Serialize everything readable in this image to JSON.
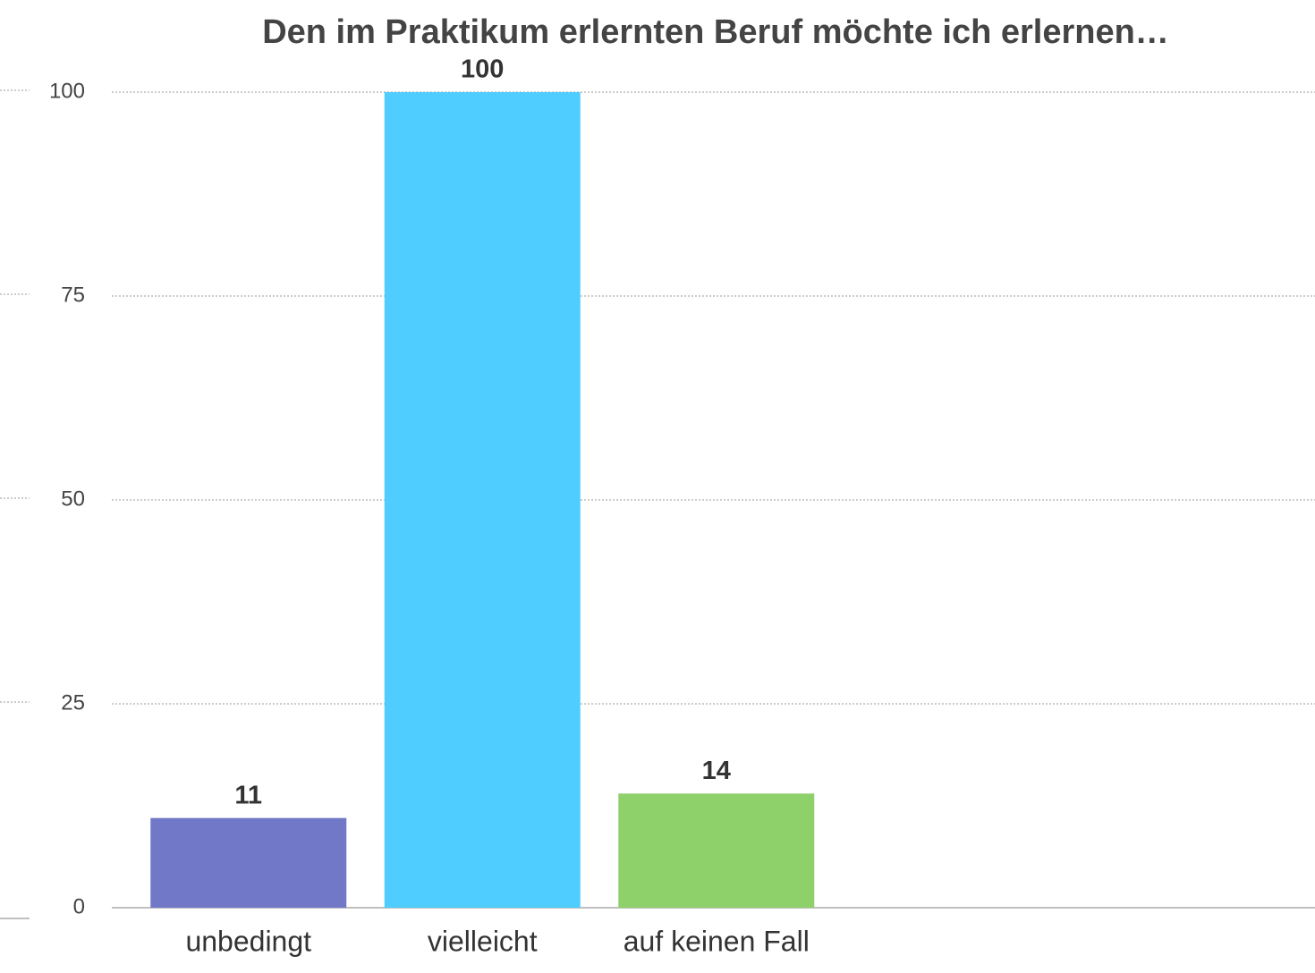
{
  "chart_data": {
    "type": "bar",
    "title": "Den im Praktikum erlernten Beruf möchte ich erlernen…",
    "categories": [
      "unbedingt",
      "vielleicht",
      "auf keinen Fall"
    ],
    "values": [
      11,
      100,
      14
    ],
    "colors": [
      "#7178c8",
      "#50cdff",
      "#8ed06a"
    ],
    "ylim": [
      0,
      100
    ],
    "yticks": [
      0,
      25,
      50,
      75,
      100
    ],
    "grid": true
  }
}
